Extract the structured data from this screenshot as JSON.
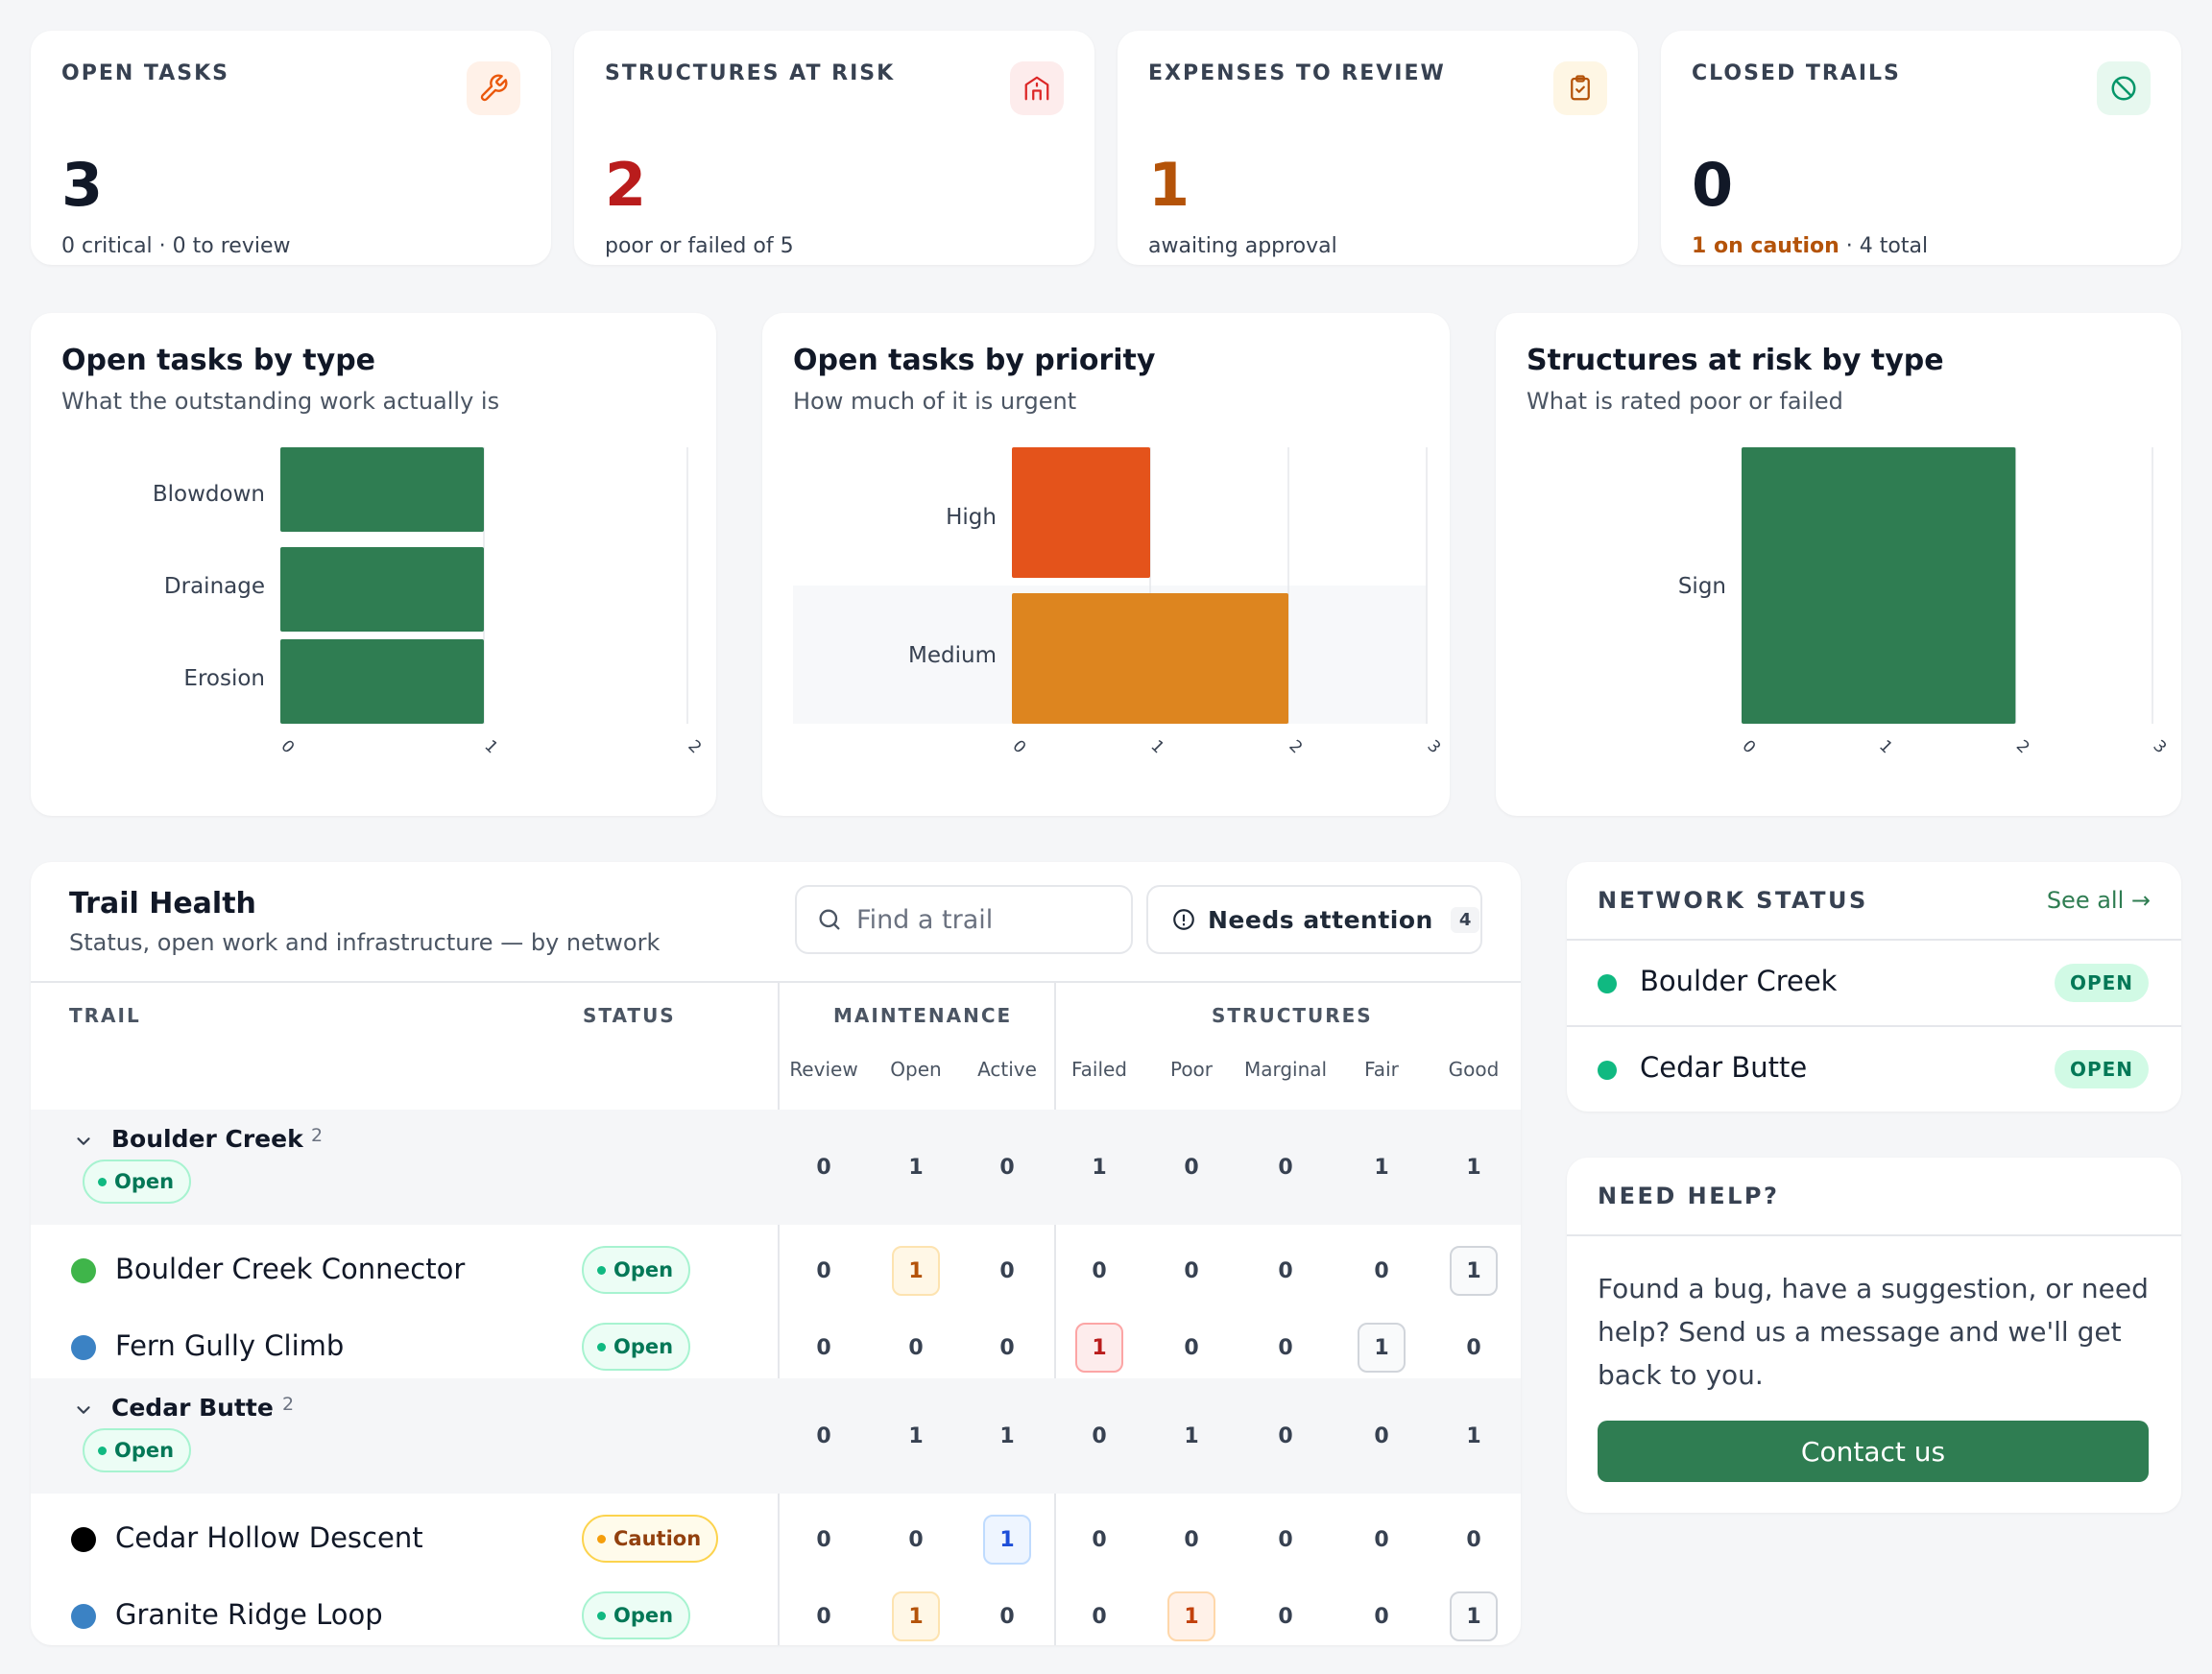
{
  "kpis": {
    "open_tasks": {
      "label": "OPEN TASKS",
      "value": "3",
      "sub": "0 critical · 0 to review",
      "icon": "wrench-icon",
      "color": "#111827"
    },
    "structures_at_risk": {
      "label": "STRUCTURES AT RISK",
      "value": "2",
      "sub": "poor or failed of 5",
      "icon": "structure-icon",
      "color": "#b91c1c"
    },
    "expenses_to_review": {
      "label": "EXPENSES TO REVIEW",
      "value": "1",
      "sub": "awaiting approval",
      "icon": "clipboard-check-icon",
      "color": "#b45309"
    },
    "closed_trails": {
      "label": "CLOSED TRAILS",
      "value": "0",
      "sub_warn": "1 on caution",
      "sub_rest": " · 4 total",
      "icon": "no-entry-icon",
      "color": "#111827"
    }
  },
  "charts": {
    "by_type": {
      "title": "Open tasks by type",
      "subtitle": "What the outstanding work actually is"
    },
    "by_priority": {
      "title": "Open tasks by priority",
      "subtitle": "How much of it is urgent"
    },
    "structures": {
      "title": "Structures at risk by type",
      "subtitle": "What is rated poor or failed"
    }
  },
  "chart_data": [
    {
      "type": "bar",
      "orientation": "horizontal",
      "categories": [
        "Blowdown",
        "Drainage",
        "Erosion"
      ],
      "values": [
        1,
        1,
        1
      ],
      "title": "Open tasks by type",
      "xlim": [
        0,
        2
      ],
      "ticks": [
        "0",
        "1",
        "2"
      ],
      "color": "#2f7d52"
    },
    {
      "type": "bar",
      "orientation": "horizontal",
      "categories": [
        "High",
        "Medium"
      ],
      "values": [
        1,
        2
      ],
      "title": "Open tasks by priority",
      "xlim": [
        0,
        3
      ],
      "ticks": [
        "0",
        "1",
        "2",
        "3"
      ],
      "colors": [
        "#e4531b",
        "#dd851f"
      ]
    },
    {
      "type": "bar",
      "orientation": "horizontal",
      "categories": [
        "Sign"
      ],
      "values": [
        2
      ],
      "title": "Structures at risk by type",
      "xlim": [
        0,
        3
      ],
      "ticks": [
        "0",
        "1",
        "2",
        "3"
      ],
      "color": "#2f7d52"
    }
  ],
  "trail_health": {
    "title": "Trail Health",
    "subtitle": "Status, open work and infrastructure — by network",
    "search_placeholder": "Find a trail",
    "attention_label": "Needs attention",
    "attention_count": "4",
    "headers": {
      "trail": "TRAIL",
      "status": "STATUS",
      "maintenance": "MAINTENANCE",
      "structures": "STRUCTURES"
    },
    "sub_headers": [
      "Review",
      "Open",
      "Active",
      "Failed",
      "Poor",
      "Marginal",
      "Fair",
      "Good"
    ],
    "groups": [
      {
        "name": "Boulder Creek",
        "count": "2",
        "status": "Open",
        "values": [
          "0",
          "1",
          "0",
          "1",
          "0",
          "0",
          "1",
          "1"
        ],
        "trails": [
          {
            "name": "Boulder Creek Connector",
            "color": "#3fb54a",
            "status": "Open",
            "status_kind": "open",
            "values": [
              "0",
              "1",
              "0",
              "0",
              "0",
              "0",
              "0",
              "1"
            ],
            "highlights": [
              null,
              "amber",
              null,
              null,
              null,
              null,
              null,
              "gray"
            ]
          },
          {
            "name": "Fern Gully Climb",
            "color": "#3b82c4",
            "status": "Open",
            "status_kind": "open",
            "values": [
              "0",
              "0",
              "0",
              "1",
              "0",
              "0",
              "1",
              "0"
            ],
            "highlights": [
              null,
              null,
              null,
              "red",
              null,
              null,
              "gray",
              null
            ]
          }
        ]
      },
      {
        "name": "Cedar Butte",
        "count": "2",
        "status": "Open",
        "values": [
          "0",
          "1",
          "1",
          "0",
          "1",
          "0",
          "0",
          "1"
        ],
        "trails": [
          {
            "name": "Cedar Hollow Descent",
            "color": "#000000",
            "status": "Caution",
            "status_kind": "caution",
            "values": [
              "0",
              "0",
              "1",
              "0",
              "0",
              "0",
              "0",
              "0"
            ],
            "highlights": [
              null,
              null,
              "blue",
              null,
              null,
              null,
              null,
              null
            ]
          },
          {
            "name": "Granite Ridge Loop",
            "color": "#3b82c4",
            "status": "Open",
            "status_kind": "open",
            "values": [
              "0",
              "1",
              "0",
              "0",
              "1",
              "0",
              "0",
              "1"
            ],
            "highlights": [
              null,
              "amber",
              null,
              null,
              "orange",
              null,
              null,
              "gray"
            ]
          }
        ]
      }
    ]
  },
  "network_status": {
    "title": "NETWORK STATUS",
    "link": "See all →",
    "items": [
      {
        "name": "Boulder Creek",
        "badge": "OPEN"
      },
      {
        "name": "Cedar Butte",
        "badge": "OPEN"
      }
    ]
  },
  "help": {
    "title": "NEED HELP?",
    "text": "Found a bug, have a suggestion, or need help? Send us a message and we'll get back to you.",
    "button": "Contact us"
  }
}
